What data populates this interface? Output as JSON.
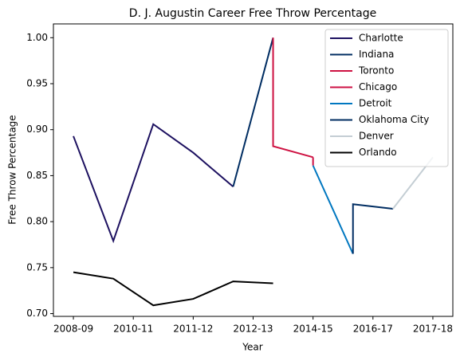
{
  "chart_data": {
    "type": "line",
    "title": "D. J. Augustin Career Free Throw Percentage",
    "xlabel": "Year",
    "ylabel": "Free Throw Percentage",
    "xlim": [
      -0.5,
      9.5
    ],
    "xticks": [
      {
        "value": 0,
        "label": "2008-09"
      },
      {
        "value": 1.5,
        "label": "2010-11"
      },
      {
        "value": 3,
        "label": "2011-12"
      },
      {
        "value": 4.5,
        "label": "2012-13"
      },
      {
        "value": 6,
        "label": "2014-15"
      },
      {
        "value": 7.5,
        "label": "2016-17"
      },
      {
        "value": 9,
        "label": "2017-18"
      }
    ],
    "ylim": [
      0.697,
      1.015
    ],
    "yticks": [
      {
        "value": 0.7,
        "label": "0.70"
      },
      {
        "value": 0.75,
        "label": "0.75"
      },
      {
        "value": 0.8,
        "label": "0.80"
      },
      {
        "value": 0.85,
        "label": "0.85"
      },
      {
        "value": 0.9,
        "label": "0.90"
      },
      {
        "value": 0.95,
        "label": "0.95"
      },
      {
        "value": 1.0,
        "label": "1.00"
      }
    ],
    "legend": "upper right",
    "series": [
      {
        "name": "Charlotte",
        "color": "#1d1160",
        "x": [
          0,
          1,
          2,
          3,
          4
        ],
        "values": [
          0.893,
          0.779,
          0.906,
          0.875,
          0.838
        ]
      },
      {
        "name": "Indiana",
        "color": "#002d62",
        "x": [
          4,
          5
        ],
        "values": [
          0.838,
          1.0
        ]
      },
      {
        "name": "Toronto",
        "color": "#ce1141",
        "x": [
          5,
          5,
          6
        ],
        "values": [
          1.0,
          0.882,
          0.87
        ]
      },
      {
        "name": "Chicago",
        "color": "#ce1145",
        "x": [
          6,
          6
        ],
        "values": [
          0.87,
          0.861
        ]
      },
      {
        "name": "Detroit",
        "color": "#0077c0",
        "x": [
          6,
          7
        ],
        "values": [
          0.861,
          0.765
        ]
      },
      {
        "name": "Oklahoma City",
        "color": "#002d62",
        "x": [
          7,
          7,
          8
        ],
        "values": [
          0.765,
          0.819,
          0.814
        ]
      },
      {
        "name": "Denver",
        "color": "#c4ced4",
        "x": [
          8,
          9
        ],
        "values": [
          0.814,
          0.87
        ]
      },
      {
        "name": "Orlando",
        "color": "#000000",
        "x": [
          0,
          1,
          2,
          3,
          4,
          5
        ],
        "values": [
          0.745,
          0.738,
          0.709,
          0.716,
          0.735,
          0.733
        ]
      }
    ]
  }
}
